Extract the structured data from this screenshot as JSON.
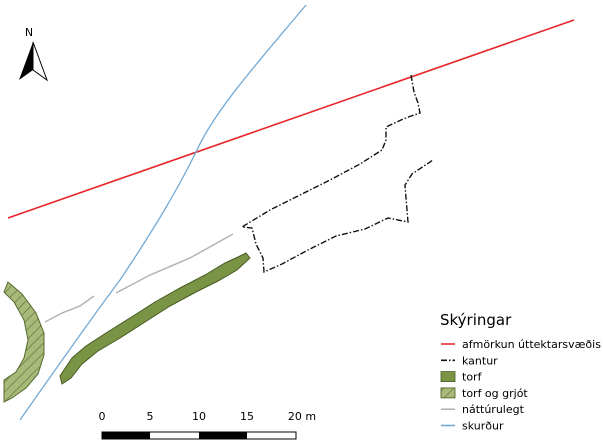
{
  "map": {
    "north_label": "N",
    "legend": {
      "title": "Skýringar",
      "items": [
        {
          "label": "afmörkun úttektarsvæðis",
          "symbol": "line",
          "color": "#e8262a",
          "dash": ""
        },
        {
          "label": "kantur",
          "symbol": "line",
          "color": "#111111",
          "dash": "6 2 1.5 2"
        },
        {
          "label": "torf",
          "symbol": "fill",
          "color": "#7a9445",
          "hatch": false
        },
        {
          "label": "torf og grjót",
          "symbol": "fill",
          "color": "#a9b97a",
          "hatch": true
        },
        {
          "label": "náttúrulegt",
          "symbol": "line",
          "color": "#b3b3b3",
          "dash": ""
        },
        {
          "label": "skurður",
          "symbol": "line",
          "color": "#72aad6",
          "dash": ""
        }
      ]
    },
    "scalebar": {
      "labels": [
        "0",
        "5",
        "10",
        "15",
        "20 m"
      ]
    },
    "colors": {
      "boundary": "#e8262a",
      "edge": "#111111",
      "turf": "#7a9445",
      "turf_stone": "#a9b97a",
      "natural": "#b3b3b3",
      "ditch": "#72aad6"
    }
  }
}
